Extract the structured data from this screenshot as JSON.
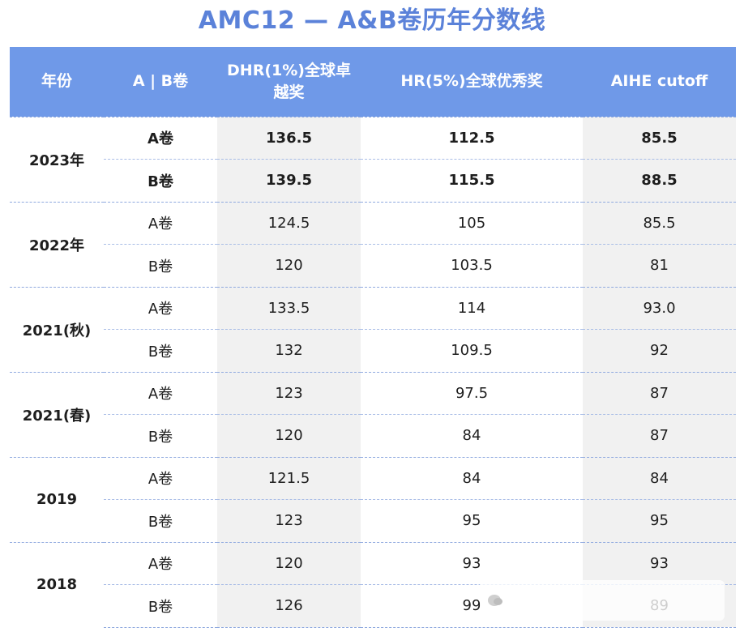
{
  "title": "AMC12 — A&B卷历年分数线",
  "headers": {
    "year": "年份",
    "paper": "A | B卷",
    "dhr": "DHR(1%)全球卓越奖",
    "hr": "HR(5%)全球优秀奖",
    "aihe": "AIHE cutoff"
  },
  "groups": [
    {
      "year": "2023年",
      "rows": [
        {
          "paper": "A卷",
          "dhr": "136.5",
          "hr": "112.5",
          "aihe": "85.5"
        },
        {
          "paper": "B卷",
          "dhr": "139.5",
          "hr": "115.5",
          "aihe": "88.5"
        }
      ]
    },
    {
      "year": "2022年",
      "rows": [
        {
          "paper": "A卷",
          "dhr": "124.5",
          "hr": "105",
          "aihe": "85.5"
        },
        {
          "paper": "B卷",
          "dhr": "120",
          "hr": "103.5",
          "aihe": "81"
        }
      ]
    },
    {
      "year": "2021(秋)",
      "rows": [
        {
          "paper": "A卷",
          "dhr": "133.5",
          "hr": "114",
          "aihe": "93.0"
        },
        {
          "paper": "B卷",
          "dhr": "132",
          "hr": "109.5",
          "aihe": "92"
        }
      ]
    },
    {
      "year": "2021(春)",
      "rows": [
        {
          "paper": "A卷",
          "dhr": "123",
          "hr": "97.5",
          "aihe": "87"
        },
        {
          "paper": "B卷",
          "dhr": "120",
          "hr": "84",
          "aihe": "87"
        }
      ]
    },
    {
      "year": "2019",
      "rows": [
        {
          "paper": "A卷",
          "dhr": "121.5",
          "hr": "84",
          "aihe": "84"
        },
        {
          "paper": "B卷",
          "dhr": "123",
          "hr": "95",
          "aihe": "95"
        }
      ]
    },
    {
      "year": "2018",
      "rows": [
        {
          "paper": "A卷",
          "dhr": "120",
          "hr": "93",
          "aihe": "93"
        },
        {
          "paper": "B卷",
          "dhr": "126",
          "hr": "99",
          "aihe": "89"
        }
      ]
    }
  ],
  "colors": {
    "title": "#5b82d9",
    "header_bg": "#6f99e8",
    "stripe": "#f1f1f1",
    "divider": "#8fa9df"
  }
}
